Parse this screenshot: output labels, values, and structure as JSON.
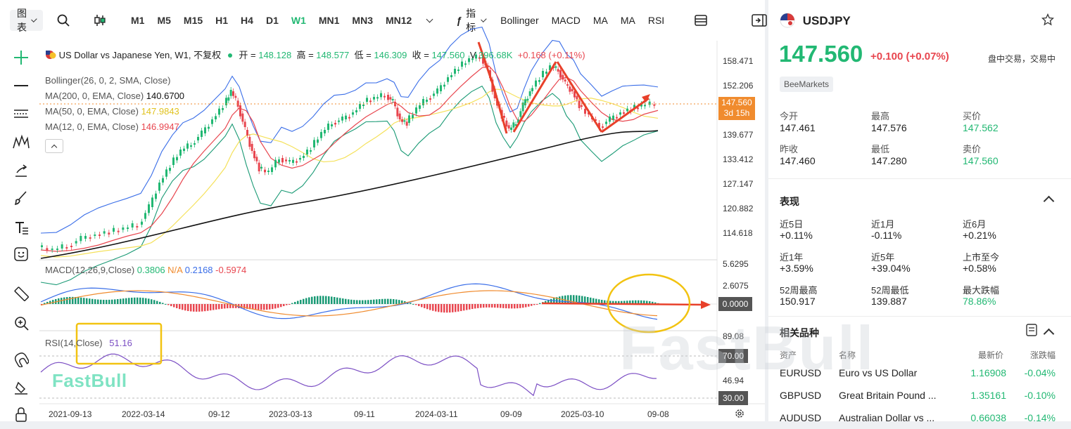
{
  "toolbar": {
    "chart_menu": "图表",
    "timeframes": [
      "M1",
      "M5",
      "M15",
      "H1",
      "H4",
      "D1",
      "W1",
      "MN1",
      "MN3",
      "MN12"
    ],
    "active_timeframe": "W1",
    "indicators_label": "指标",
    "indicator_buttons": [
      "Bollinger",
      "MACD",
      "MA",
      "MA",
      "RSI"
    ]
  },
  "chart": {
    "title_line": "US Dollar vs Japanese Yen, W1, 不复权",
    "open_label": "开 =",
    "open_value": "148.128",
    "high_label": "高 =",
    "high_value": "148.577",
    "low_label": "低 =",
    "low_value": "146.309",
    "close_label": "收 =",
    "close_value": "147.560",
    "volume_label": "V",
    "volume_value": "396.68K",
    "change_value": "+0.168 (+0.11%)",
    "bollinger": "Bollinger(26, 0, 2, SMA, Close)",
    "ma200_label": "MA(200, 0, EMA, Close)",
    "ma200_value": "140.6700",
    "ma50_label": "MA(50, 0, EMA, Close)",
    "ma50_value": "147.9843",
    "ma12_label": "MA(12, 0, EMA, Close)",
    "ma12_value": "146.9947",
    "price_axis": [
      "158.471",
      "152.206",
      "139.677",
      "133.412",
      "127.147",
      "120.882",
      "114.618"
    ],
    "current_price_tag": "147.560",
    "countdown_tag": "3d 15h",
    "macd_label": "MACD(12,26,9,Close)",
    "macd_v1": "0.3806",
    "macd_v2": "N/A",
    "macd_v3": "0.2168",
    "macd_v4": "-0.5974",
    "macd_axis": [
      "5.6295",
      "2.6075"
    ],
    "macd_zero_tag": "0.0000",
    "rsi_label": "RSI(14,Close)",
    "rsi_value": "51.16",
    "rsi_axis_top": "89.08",
    "rsi_70_tag": "70.00",
    "rsi_axis_mid": "46.94",
    "rsi_30_tag": "30.00",
    "date_axis": [
      "2021-09-13",
      "2022-03-14",
      "09-12",
      "2023-03-13",
      "09-11",
      "2024-03-11",
      "09-09",
      "2025-03-10",
      "09-08"
    ],
    "watermark_logo": "FastBull"
  },
  "quote": {
    "symbol": "USDJPY",
    "price": "147.560",
    "change": "+0.100",
    "change_pct": "(+0.07%)",
    "status": "盘中交易，交易中",
    "broker": "BeeMarkets",
    "stats": [
      {
        "label": "今开",
        "value": "147.461"
      },
      {
        "label": "最高",
        "value": "147.576"
      },
      {
        "label": "买价",
        "value": "147.562"
      },
      {
        "label": "昨收",
        "value": "147.460"
      },
      {
        "label": "最低",
        "value": "147.280"
      },
      {
        "label": "卖价",
        "value": "147.560"
      }
    ],
    "performance_title": "表现",
    "performance": [
      {
        "label": "近5日",
        "value": "+0.11%"
      },
      {
        "label": "近1月",
        "value": "-0.11%"
      },
      {
        "label": "近6月",
        "value": "+0.21%"
      },
      {
        "label": "近1年",
        "value": "+3.59%"
      },
      {
        "label": "近5年",
        "value": "+39.04%"
      },
      {
        "label": "上市至今",
        "value": "+0.58%"
      },
      {
        "label": "52周最高",
        "value": "150.917"
      },
      {
        "label": "52周最低",
        "value": "139.887"
      },
      {
        "label": "最大跌幅",
        "value": "78.86%"
      }
    ],
    "related_title": "相关品种",
    "related_headers": [
      "资产",
      "名称",
      "最新价",
      "涨跌幅"
    ],
    "related": [
      {
        "asset": "EURUSD",
        "name": "Euro vs US Dollar",
        "price": "1.16908",
        "pct": "-0.04%"
      },
      {
        "asset": "GBPUSD",
        "name": "Great Britain Pound ...",
        "price": "1.35161",
        "pct": "-0.10%"
      },
      {
        "asset": "AUDUSD",
        "name": "Australian Dollar vs ...",
        "price": "0.66038",
        "pct": "-0.14%"
      }
    ],
    "watermark": "FastBull"
  }
}
